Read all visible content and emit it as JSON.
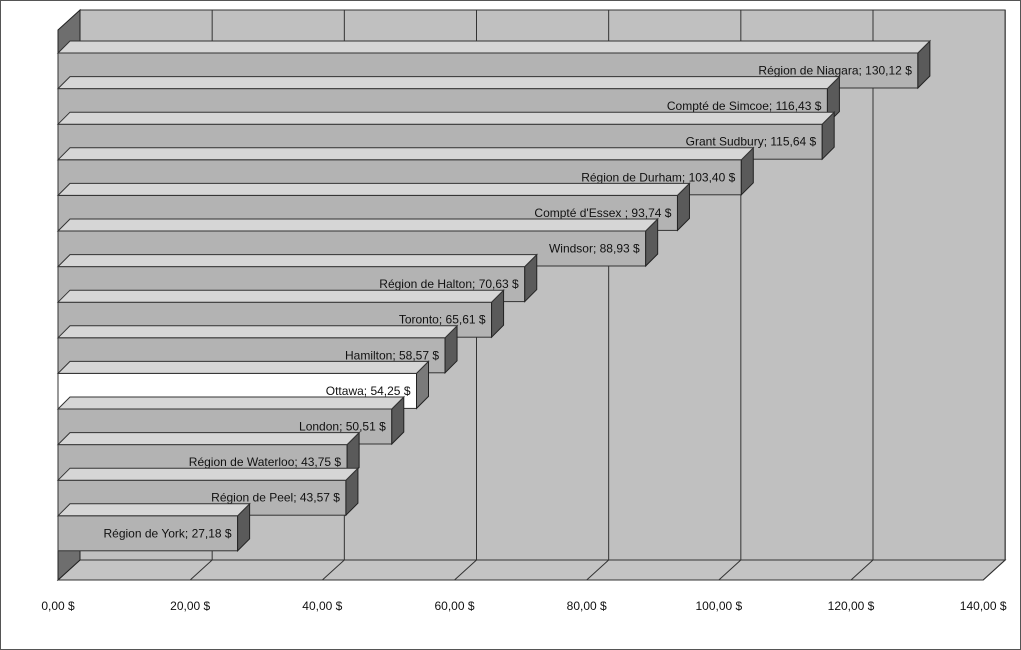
{
  "chart_data": {
    "type": "bar",
    "orientation": "horizontal",
    "three_d": true,
    "categories": [
      "Région de Niagara",
      "Compté de Simcoe",
      "Grant Sudbury",
      "Région de Durham",
      "Compté d'Essex",
      "Windsor",
      "Région de Halton",
      "Toronto",
      "Hamilton",
      "Ottawa",
      "London",
      "Région de Waterloo",
      "Région de Peel",
      "Région de York"
    ],
    "values": [
      130.12,
      116.43,
      115.64,
      103.4,
      93.74,
      88.93,
      70.63,
      65.61,
      58.57,
      54.25,
      50.51,
      43.75,
      43.57,
      27.18
    ],
    "data_labels": [
      "Région de Niagara; 130,12 $",
      "Compté de Simcoe; 116,43 $",
      "Grant Sudbury; 115,64 $",
      "Région de Durham; 103,40 $",
      "Compté d'Essex ; 93,74 $",
      "Windsor; 88,93 $",
      "Région de Halton; 70,63 $",
      "Toronto; 65,61 $",
      "Hamilton; 58,57 $",
      "Ottawa; 54,25 $",
      "London; 50,51 $",
      "Région de Waterloo; 43,75 $",
      "Région de Peel; 43,57 $",
      "Région de York; 27,18 $"
    ],
    "highlighted_category": "Ottawa",
    "x_ticks": [
      {
        "value": 0,
        "label": "0,00 $"
      },
      {
        "value": 20,
        "label": "20,00 $"
      },
      {
        "value": 40,
        "label": "40,00 $"
      },
      {
        "value": 60,
        "label": "60,00 $"
      },
      {
        "value": 80,
        "label": "80,00 $"
      },
      {
        "value": 100,
        "label": "100,00 $"
      },
      {
        "value": 120,
        "label": "120,00 $"
      },
      {
        "value": 140,
        "label": "140,00 $"
      }
    ],
    "xlim": [
      0,
      140
    ],
    "title": "",
    "xlabel": "",
    "ylabel": "",
    "grid": "vertical",
    "legend": "none",
    "colors": {
      "bar": "#b3b3b3",
      "bar_side": "#5a5a5a",
      "bar_top": "#d6d6d6",
      "highlight": "#ffffff",
      "highlight_side": "#7a7a7a",
      "back_wall": "#c0c0c0",
      "floor": "#c4c4c4",
      "side_wall": "#6e6e6e",
      "grid": "#333333"
    }
  }
}
